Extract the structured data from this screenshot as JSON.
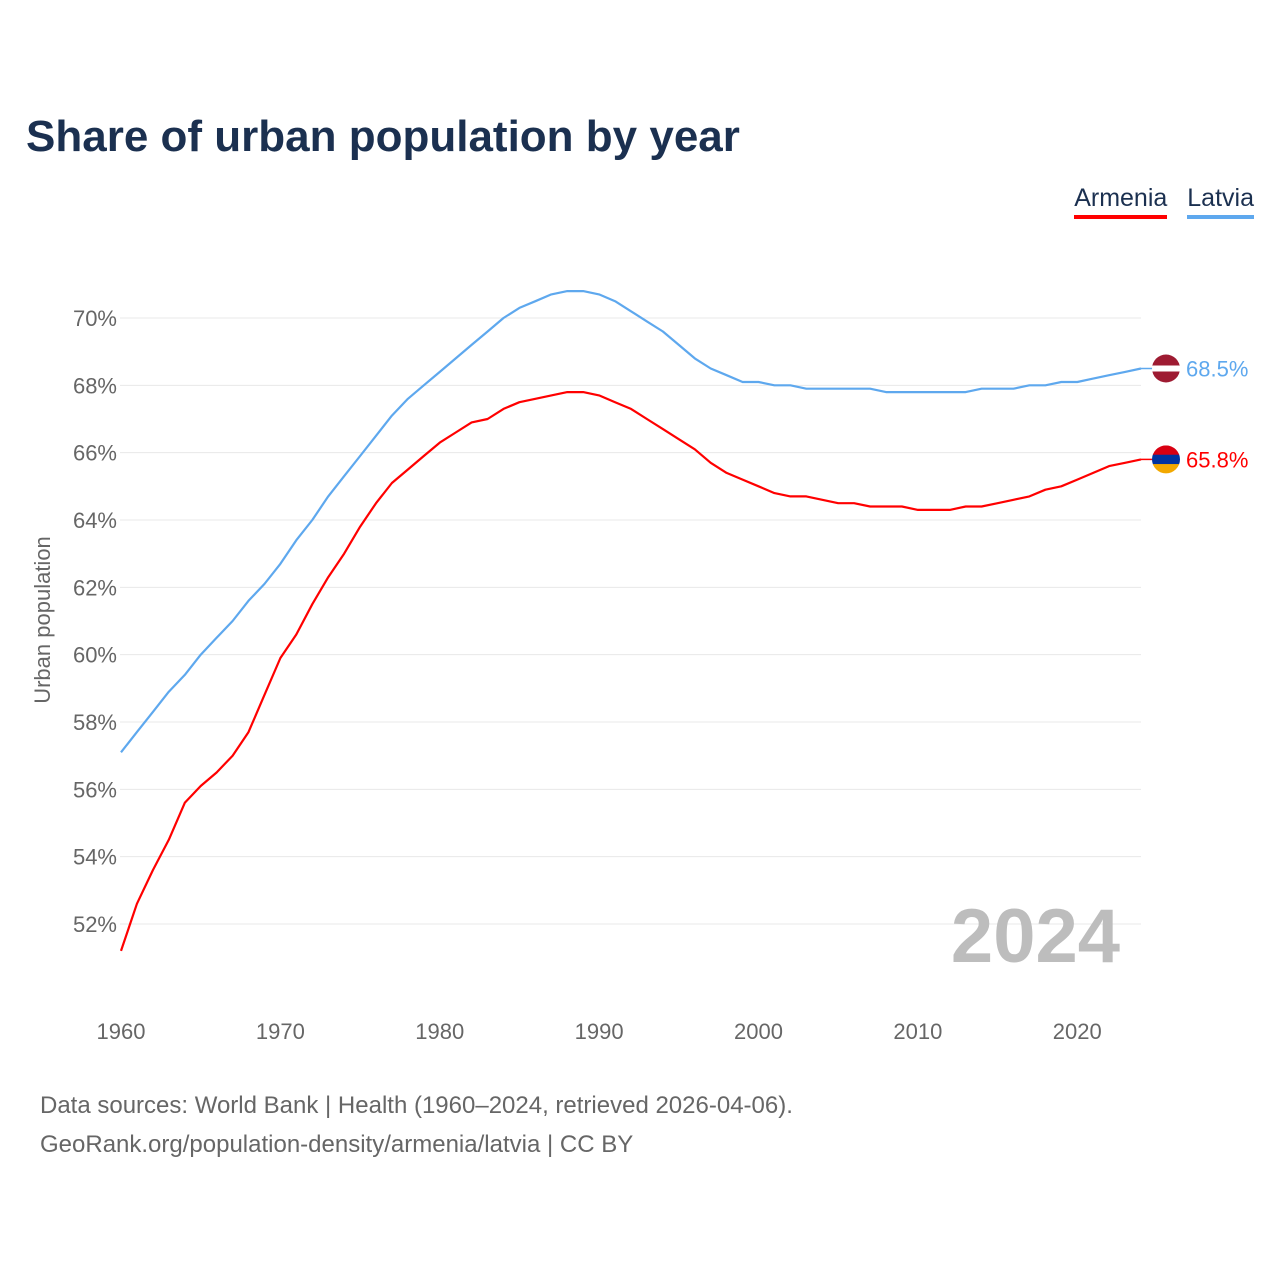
{
  "chart_data": {
    "type": "line",
    "title": "Share of urban population by year",
    "ylabel": "Urban population",
    "xlabel": "",
    "xlim": [
      1960,
      2024
    ],
    "ylim": [
      50.5,
      71.5
    ],
    "x_ticks": [
      1960,
      1970,
      1980,
      1990,
      2000,
      2010,
      2020
    ],
    "y_ticks": [
      52,
      54,
      56,
      58,
      60,
      62,
      64,
      66,
      68,
      70
    ],
    "y_tick_labels": [
      "52%",
      "54%",
      "56%",
      "58%",
      "60%",
      "62%",
      "64%",
      "66%",
      "68%",
      "70%"
    ],
    "x_tick_labels": [
      "1960",
      "1970",
      "1980",
      "1990",
      "2000",
      "2010",
      "2020"
    ],
    "grid": true,
    "legend_position": "top-right",
    "year_watermark": "2024",
    "series": [
      {
        "name": "Armenia",
        "color": "#ff0000",
        "end_label": "65.8%",
        "flag_colors": [
          "#d90012",
          "#0033a0",
          "#f2a800"
        ],
        "values": [
          51.2,
          52.6,
          53.6,
          54.5,
          55.6,
          56.1,
          56.5,
          57.0,
          57.7,
          58.8,
          59.9,
          60.6,
          61.5,
          62.3,
          63.0,
          63.8,
          64.5,
          65.1,
          65.5,
          65.9,
          66.3,
          66.6,
          66.9,
          67.0,
          67.3,
          67.5,
          67.6,
          67.7,
          67.8,
          67.8,
          67.7,
          67.5,
          67.3,
          67.0,
          66.7,
          66.4,
          66.1,
          65.7,
          65.4,
          65.2,
          65.0,
          64.8,
          64.7,
          64.7,
          64.6,
          64.5,
          64.5,
          64.4,
          64.4,
          64.4,
          64.3,
          64.3,
          64.3,
          64.4,
          64.4,
          64.5,
          64.6,
          64.7,
          64.9,
          65.0,
          65.2,
          65.4,
          65.6,
          65.7,
          65.8
        ]
      },
      {
        "name": "Latvia",
        "color": "#5ea8ee",
        "end_label": "68.5%",
        "flag_colors": [
          "#9e1b32",
          "#ffffff",
          "#9e1b32"
        ],
        "values": [
          57.1,
          57.7,
          58.3,
          58.9,
          59.4,
          60.0,
          60.5,
          61.0,
          61.6,
          62.1,
          62.7,
          63.4,
          64.0,
          64.7,
          65.3,
          65.9,
          66.5,
          67.1,
          67.6,
          68.0,
          68.4,
          68.8,
          69.2,
          69.6,
          70.0,
          70.3,
          70.5,
          70.7,
          70.8,
          70.8,
          70.7,
          70.5,
          70.2,
          69.9,
          69.6,
          69.2,
          68.8,
          68.5,
          68.3,
          68.1,
          68.1,
          68.0,
          68.0,
          67.9,
          67.9,
          67.9,
          67.9,
          67.9,
          67.8,
          67.8,
          67.8,
          67.8,
          67.8,
          67.8,
          67.9,
          67.9,
          67.9,
          68.0,
          68.0,
          68.1,
          68.1,
          68.2,
          68.3,
          68.4,
          68.5
        ]
      }
    ]
  },
  "legend": {
    "items": [
      "Armenia",
      "Latvia"
    ]
  },
  "footer": {
    "line1": "Data sources: World Bank | Health (1960–2024, retrieved 2026-04-06).",
    "line2": "GeoRank.org/population-density/armenia/latvia | CC BY"
  }
}
